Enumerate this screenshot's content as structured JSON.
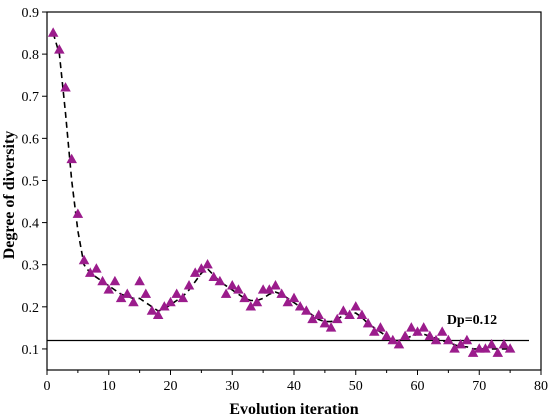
{
  "chart_data": {
    "type": "scatter",
    "title": "",
    "xlabel": "Evolution iteration",
    "ylabel": "Degree of diversity",
    "xlim": [
      0,
      80
    ],
    "ylim": [
      0.05,
      0.9
    ],
    "xticks": [
      0,
      10,
      20,
      30,
      40,
      50,
      60,
      70,
      80
    ],
    "yticks": [
      0.1,
      0.2,
      0.3,
      0.4,
      0.5,
      0.6,
      0.7,
      0.8,
      0.9
    ],
    "grid": false,
    "legend": "none",
    "marker_color": "#9b1c8c",
    "trend_color": "#000000",
    "series": [
      {
        "marker": "triangle",
        "x": [
          1,
          2,
          3,
          4,
          5,
          6,
          7,
          8,
          9,
          10,
          11,
          12,
          13,
          14,
          15,
          16,
          17,
          18,
          19,
          20,
          21,
          22,
          23,
          24,
          25,
          26,
          27,
          28,
          29,
          30,
          31,
          32,
          33,
          34,
          35,
          36,
          37,
          38,
          39,
          40,
          41,
          42,
          43,
          44,
          45,
          46,
          47,
          48,
          49,
          50,
          51,
          52,
          53,
          54,
          55,
          56,
          57,
          58,
          59,
          60,
          61,
          62,
          63,
          64,
          65,
          66,
          67,
          68,
          69,
          70,
          71,
          72,
          73,
          74,
          75
        ],
        "y": [
          0.85,
          0.81,
          0.72,
          0.55,
          0.42,
          0.31,
          0.28,
          0.29,
          0.26,
          0.24,
          0.26,
          0.22,
          0.23,
          0.21,
          0.26,
          0.23,
          0.19,
          0.18,
          0.2,
          0.21,
          0.23,
          0.22,
          0.25,
          0.28,
          0.29,
          0.3,
          0.27,
          0.26,
          0.23,
          0.25,
          0.24,
          0.22,
          0.2,
          0.21,
          0.24,
          0.24,
          0.25,
          0.23,
          0.21,
          0.22,
          0.2,
          0.19,
          0.17,
          0.18,
          0.16,
          0.15,
          0.17,
          0.19,
          0.18,
          0.2,
          0.18,
          0.16,
          0.14,
          0.15,
          0.13,
          0.12,
          0.11,
          0.13,
          0.15,
          0.14,
          0.15,
          0.13,
          0.12,
          0.14,
          0.12,
          0.1,
          0.11,
          0.12,
          0.09,
          0.1,
          0.1,
          0.11,
          0.09,
          0.11,
          0.1
        ]
      }
    ],
    "trend": {
      "style": "dashed",
      "x": [
        1,
        2,
        3,
        4,
        5,
        6,
        7,
        8,
        9,
        10,
        11,
        12,
        13,
        14,
        15,
        16,
        17,
        18,
        19,
        20,
        21,
        22,
        23,
        24,
        25,
        26,
        27,
        28,
        29,
        30,
        31,
        32,
        33,
        34,
        35,
        36,
        37,
        38,
        39,
        40,
        41,
        42,
        43,
        44,
        45,
        46,
        47,
        48,
        49,
        50,
        51,
        52,
        53,
        54,
        55,
        56,
        57,
        58,
        59,
        60,
        61,
        62,
        63,
        64,
        65,
        66,
        67,
        68,
        69,
        70,
        71,
        72,
        73,
        74,
        75
      ],
      "y": [
        0.85,
        0.8,
        0.66,
        0.5,
        0.38,
        0.3,
        0.28,
        0.27,
        0.26,
        0.25,
        0.24,
        0.23,
        0.225,
        0.22,
        0.22,
        0.21,
        0.2,
        0.19,
        0.195,
        0.205,
        0.215,
        0.225,
        0.24,
        0.26,
        0.28,
        0.29,
        0.275,
        0.26,
        0.25,
        0.24,
        0.23,
        0.22,
        0.215,
        0.215,
        0.22,
        0.23,
        0.235,
        0.23,
        0.22,
        0.21,
        0.2,
        0.19,
        0.18,
        0.17,
        0.165,
        0.165,
        0.17,
        0.18,
        0.185,
        0.185,
        0.175,
        0.16,
        0.15,
        0.14,
        0.13,
        0.12,
        0.12,
        0.125,
        0.13,
        0.135,
        0.135,
        0.13,
        0.125,
        0.12,
        0.115,
        0.11,
        0.105,
        0.105,
        0.1,
        0.1,
        0.1,
        0.1,
        0.1,
        0.1,
        0.1
      ]
    },
    "reference_line": {
      "y": 0.12,
      "label": "Dp=0.12"
    }
  }
}
